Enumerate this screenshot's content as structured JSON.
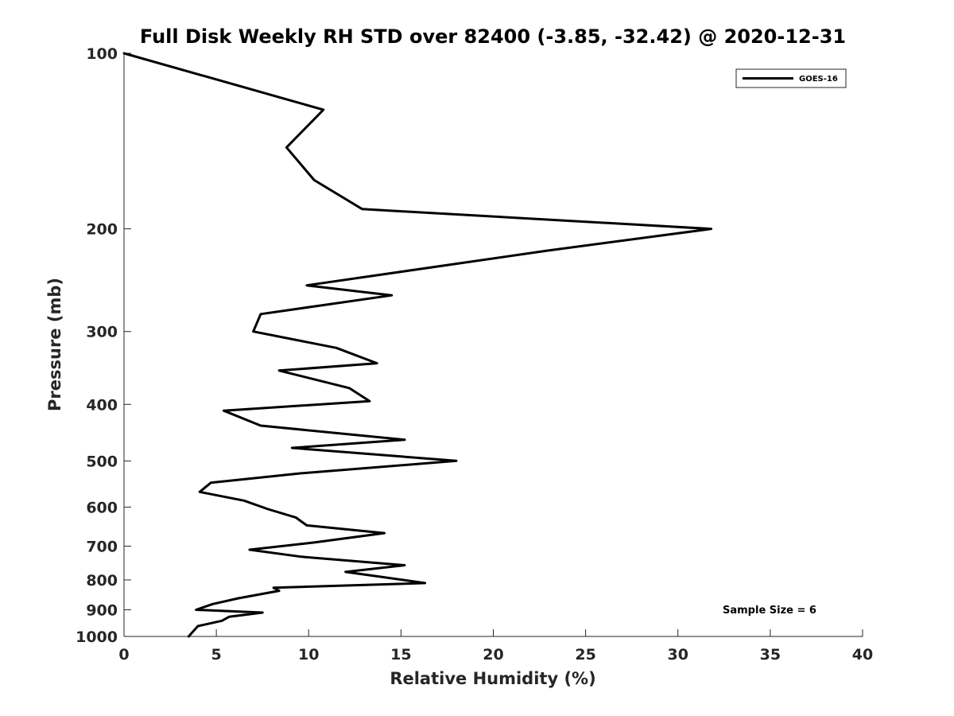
{
  "chart_data": {
    "type": "line",
    "title": "Full Disk Weekly RH STD over 82400 (-3.85, -32.42) @ 2020-12-31",
    "xlabel": "Relative Humidity (%)",
    "ylabel": "Pressure (mb)",
    "xlim": [
      0,
      40
    ],
    "ylim": [
      1000,
      100
    ],
    "yscale": "log",
    "reverse_y": true,
    "grid": false,
    "legend_position": "top-right",
    "x_ticks": [
      0,
      5,
      10,
      15,
      20,
      25,
      30,
      35,
      40
    ],
    "x_tick_labels": [
      "0",
      "5",
      "10",
      "15",
      "20",
      "25",
      "30",
      "35",
      "40"
    ],
    "y_ticks": [
      100,
      200,
      300,
      400,
      500,
      600,
      700,
      800,
      900,
      1000
    ],
    "y_tick_labels": [
      "100",
      "200",
      "300",
      "400",
      "500",
      "600",
      "700",
      "800",
      "900",
      "1000"
    ],
    "series": [
      {
        "name": "GOES-16",
        "color": "#000000",
        "x": [
          0.0,
          10.8,
          8.8,
          10.3,
          12.9,
          31.8,
          22.9,
          9.9,
          14.5,
          7.4,
          7.0,
          11.5,
          13.7,
          8.4,
          12.2,
          13.3,
          5.4,
          7.4,
          15.2,
          9.1,
          18.0,
          9.6,
          4.7,
          4.1,
          6.5,
          7.8,
          9.3,
          9.9,
          14.1,
          10.3,
          6.8,
          9.6,
          15.2,
          12.0,
          13.9,
          16.3,
          8.1,
          8.4,
          6.2,
          4.8,
          3.9,
          7.5,
          5.7,
          5.3,
          4.0,
          3.5
        ],
        "y": [
          100,
          125,
          145,
          165,
          185,
          200,
          218,
          250,
          260,
          280,
          300,
          320,
          340,
          350,
          375,
          395,
          410,
          435,
          460,
          475,
          500,
          525,
          545,
          565,
          585,
          605,
          625,
          645,
          665,
          690,
          710,
          730,
          755,
          775,
          790,
          810,
          825,
          835,
          860,
          880,
          900,
          910,
          925,
          940,
          960,
          1000
        ]
      }
    ],
    "annotations": [
      "Sample Size = 6"
    ]
  }
}
